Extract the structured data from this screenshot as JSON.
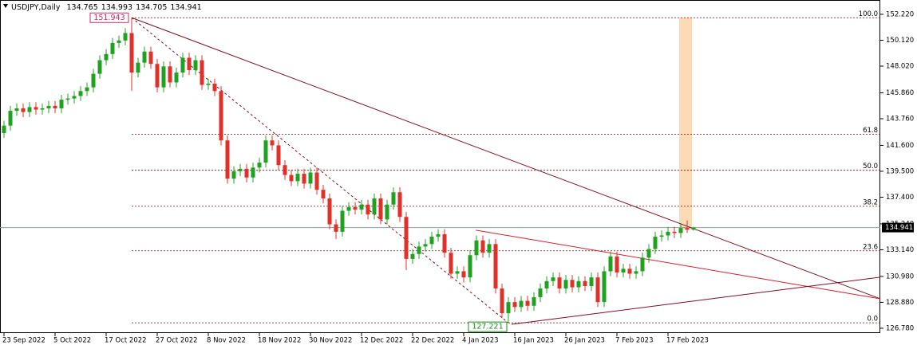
{
  "chart_data": {
    "type": "candlestick",
    "title": "USDJPY,Daily",
    "header_ohlc": [
      134.765,
      134.993,
      134.705,
      134.941
    ],
    "categories": [
      "23 Sep 2022",
      null,
      null,
      null,
      null,
      null,
      null,
      null,
      "5 Oct 2022",
      null,
      null,
      null,
      null,
      null,
      null,
      null,
      "17 Oct 2022",
      null,
      null,
      null,
      null,
      null,
      null,
      null,
      "27 Oct 2022",
      null,
      null,
      null,
      null,
      null,
      null,
      null,
      "8 Nov 2022",
      null,
      null,
      null,
      null,
      null,
      null,
      null,
      "18 Nov 2022",
      null,
      null,
      null,
      null,
      null,
      null,
      null,
      "30 Nov 2022",
      null,
      null,
      null,
      null,
      null,
      null,
      null,
      "12 Dec 2022",
      null,
      null,
      null,
      null,
      null,
      null,
      null,
      "22 Dec 2022",
      null,
      null,
      null,
      null,
      null,
      null,
      null,
      "4 Jan 2023",
      null,
      null,
      null,
      null,
      null,
      null,
      null,
      "16 Jan 2023",
      null,
      null,
      null,
      null,
      null,
      null,
      null,
      "26 Jan 2023",
      null,
      null,
      null,
      null,
      null,
      null,
      null,
      "7 Feb 2023",
      null,
      null,
      null,
      null,
      null,
      null,
      null,
      "17 Feb 2023",
      null,
      null,
      null,
      null
    ],
    "open": [
      142.6,
      143.2,
      144.4,
      144.6,
      144.3,
      144.7,
      144.5,
      144.6,
      144.8,
      144.6,
      145.3,
      145.4,
      145.6,
      146.0,
      146.3,
      147.4,
      148.5,
      149.0,
      149.9,
      150.1,
      150.7,
      147.5,
      148.3,
      149.2,
      148.2,
      146.3,
      148.0,
      146.7,
      147.5,
      148.7,
      147.7,
      148.5,
      146.5,
      146.6,
      146.0,
      142.0,
      138.9,
      139.5,
      139.7,
      139.0,
      139.8,
      140.2,
      142.0,
      141.6,
      140.0,
      139.2,
      138.7,
      139.3,
      138.5,
      139.4,
      138.0,
      137.3,
      135.2,
      134.6,
      136.3,
      136.6,
      136.4,
      136.8,
      136.0,
      137.3,
      135.6,
      136.8,
      137.8,
      135.8,
      132.4,
      132.8,
      133.4,
      133.6,
      134.2,
      134.4,
      132.9,
      131.2,
      131.4,
      130.9,
      132.7,
      133.9,
      132.9,
      133.6,
      130.0,
      128.0,
      128.9,
      128.5,
      129.0,
      128.6,
      129.3,
      130.0,
      130.6,
      130.9,
      130.0,
      130.7,
      130.1,
      130.6,
      130.2,
      130.9,
      128.9,
      131.4,
      132.6,
      131.3,
      131.6,
      131.2,
      131.4,
      132.5,
      133.2,
      134.2,
      134.3,
      134.6,
      134.5,
      134.9,
      134.765
    ],
    "high": [
      143.6,
      144.8,
      145.0,
      145.0,
      145.1,
      145.1,
      145.0,
      145.2,
      145.2,
      145.7,
      145.8,
      146.0,
      146.4,
      146.7,
      147.8,
      148.9,
      149.4,
      150.3,
      150.5,
      151.1,
      151.943,
      148.7,
      149.6,
      149.6,
      148.6,
      148.4,
      148.4,
      147.9,
      149.1,
      149.1,
      148.9,
      148.9,
      147.0,
      147.0,
      146.4,
      142.4,
      139.9,
      140.1,
      140.1,
      140.2,
      140.6,
      142.4,
      142.4,
      142.0,
      140.4,
      139.6,
      139.7,
      139.7,
      139.8,
      139.8,
      138.4,
      137.7,
      135.6,
      136.7,
      137.0,
      137.0,
      137.2,
      137.2,
      137.7,
      137.7,
      137.2,
      138.2,
      138.2,
      136.2,
      133.2,
      133.8,
      134.0,
      134.6,
      134.8,
      134.8,
      133.3,
      131.8,
      131.8,
      133.1,
      134.3,
      134.3,
      134.0,
      134.0,
      130.4,
      129.3,
      129.3,
      129.4,
      129.4,
      129.7,
      130.4,
      131.0,
      131.3,
      131.3,
      131.1,
      131.1,
      131.0,
      131.0,
      131.3,
      131.3,
      131.8,
      133.0,
      133.0,
      132.0,
      132.0,
      131.8,
      132.9,
      133.6,
      134.6,
      134.7,
      135.0,
      135.0,
      135.3,
      135.5,
      134.993
    ],
    "low": [
      142.2,
      142.8,
      144.0,
      143.9,
      143.9,
      144.1,
      144.1,
      144.2,
      144.2,
      144.2,
      144.9,
      145.0,
      145.2,
      145.6,
      145.9,
      147.0,
      148.1,
      148.6,
      149.5,
      149.7,
      146.0,
      147.1,
      147.9,
      147.8,
      145.9,
      145.9,
      146.3,
      146.3,
      147.1,
      147.3,
      147.3,
      146.1,
      146.1,
      145.6,
      141.6,
      138.5,
      138.5,
      139.1,
      138.6,
      138.6,
      139.4,
      139.8,
      141.2,
      139.6,
      138.8,
      138.3,
      138.3,
      138.1,
      138.1,
      137.6,
      136.9,
      134.8,
      134.0,
      134.2,
      135.9,
      136.0,
      136.0,
      135.6,
      135.6,
      135.2,
      135.2,
      136.4,
      135.4,
      131.5,
      132.0,
      132.4,
      133.0,
      133.2,
      133.8,
      132.5,
      130.8,
      130.8,
      130.5,
      130.5,
      132.3,
      132.5,
      132.5,
      129.6,
      127.6,
      127.221,
      128.1,
      128.1,
      128.2,
      128.2,
      128.9,
      129.6,
      130.2,
      129.6,
      129.6,
      129.7,
      129.7,
      129.8,
      129.8,
      128.5,
      128.5,
      131.0,
      130.9,
      130.9,
      130.8,
      130.8,
      131.0,
      132.1,
      132.8,
      133.8,
      133.9,
      134.1,
      134.1,
      134.5,
      134.705
    ],
    "close": [
      143.2,
      144.4,
      144.6,
      144.3,
      144.7,
      144.5,
      144.6,
      144.8,
      144.6,
      145.3,
      145.4,
      145.6,
      146.0,
      146.3,
      147.4,
      148.5,
      149.0,
      149.9,
      150.1,
      150.7,
      147.5,
      148.3,
      149.2,
      148.2,
      146.3,
      148.0,
      146.7,
      147.5,
      148.7,
      147.7,
      148.5,
      146.5,
      146.6,
      146.0,
      142.0,
      138.9,
      139.5,
      139.7,
      139.0,
      139.8,
      140.2,
      142.0,
      141.6,
      140.0,
      139.2,
      138.7,
      139.3,
      138.5,
      139.4,
      138.0,
      137.3,
      135.2,
      134.6,
      136.3,
      136.6,
      136.4,
      136.8,
      136.0,
      137.3,
      135.6,
      136.8,
      137.8,
      135.8,
      132.4,
      132.8,
      133.4,
      133.6,
      134.2,
      134.4,
      132.9,
      131.2,
      131.4,
      130.9,
      132.7,
      133.9,
      132.9,
      133.6,
      130.0,
      128.0,
      128.9,
      128.5,
      129.0,
      128.6,
      129.3,
      130.0,
      130.6,
      130.9,
      130.0,
      130.7,
      130.1,
      130.6,
      130.2,
      130.9,
      128.9,
      131.4,
      132.6,
      131.3,
      131.6,
      131.2,
      131.4,
      132.5,
      133.2,
      134.2,
      134.3,
      134.6,
      134.5,
      134.9,
      134.765,
      134.941
    ],
    "up_color": "#22a022",
    "down_color": "#e0302a",
    "ylim": [
      126.39,
      153.38
    ],
    "yticks": [
      {
        "value": 152.22,
        "label": "152.220"
      },
      {
        "value": 150.12,
        "label": "150.120"
      },
      {
        "value": 148.02,
        "label": "148.020"
      },
      {
        "value": 145.86,
        "label": "145.860"
      },
      {
        "value": 143.76,
        "label": "143.760"
      },
      {
        "value": 141.6,
        "label": "141.600"
      },
      {
        "value": 139.5,
        "label": "139.500"
      },
      {
        "value": 137.4,
        "label": "137.400"
      },
      {
        "value": 135.24,
        "label": "135.240"
      },
      {
        "value": 133.14,
        "label": "133.140"
      },
      {
        "value": 130.98,
        "label": "130.980"
      },
      {
        "value": 128.88,
        "label": "128.880"
      },
      {
        "value": 126.78,
        "label": "126.780"
      }
    ],
    "current_price": 134.941,
    "price_labels": [
      {
        "value": 151.943,
        "x": 20,
        "color": "#c0306a"
      },
      {
        "value": 127.221,
        "x": 79,
        "color": "#1e8a1e"
      }
    ],
    "fibonacci": {
      "x": [
        20,
        137.25
      ],
      "color": "#8b0000",
      "levels": [
        {
          "ratio": {
            "value": 100,
            "label": "100.0"
          },
          "price": 151.943
        },
        {
          "ratio": 61.8,
          "price": 142.499
        },
        {
          "ratio": {
            "value": 50,
            "label": "50.0"
          },
          "price": 139.582
        },
        {
          "ratio": 38.2,
          "price": 136.665
        },
        {
          "ratio": 23.6,
          "price": 133.055
        },
        {
          "ratio": {
            "value": 0,
            "label": "0.0"
          },
          "price": 127.221
        }
      ]
    },
    "trendlines": [
      {
        "x": [
          20,
          137.25
        ],
        "y": [
          151.943,
          129.17
        ],
        "color": "#7a1020",
        "dash": false
      },
      {
        "x": [
          20,
          79
        ],
        "y": [
          151.943,
          127.221
        ],
        "color": "#7a1020",
        "dash": true
      },
      {
        "x": [
          73.9,
          137.25
        ],
        "y": [
          134.73,
          129.17
        ],
        "color": "#d02030",
        "dash": false
      },
      {
        "x": [
          79.5,
          137.25
        ],
        "y": [
          127.1,
          130.92
        ],
        "color": "#7a1020",
        "dash": false
      }
    ],
    "highlight": {
      "x": [
        105.75,
        107.75
      ],
      "y": [
        134.8,
        151.943
      ],
      "color": "#fbd3a8"
    }
  }
}
